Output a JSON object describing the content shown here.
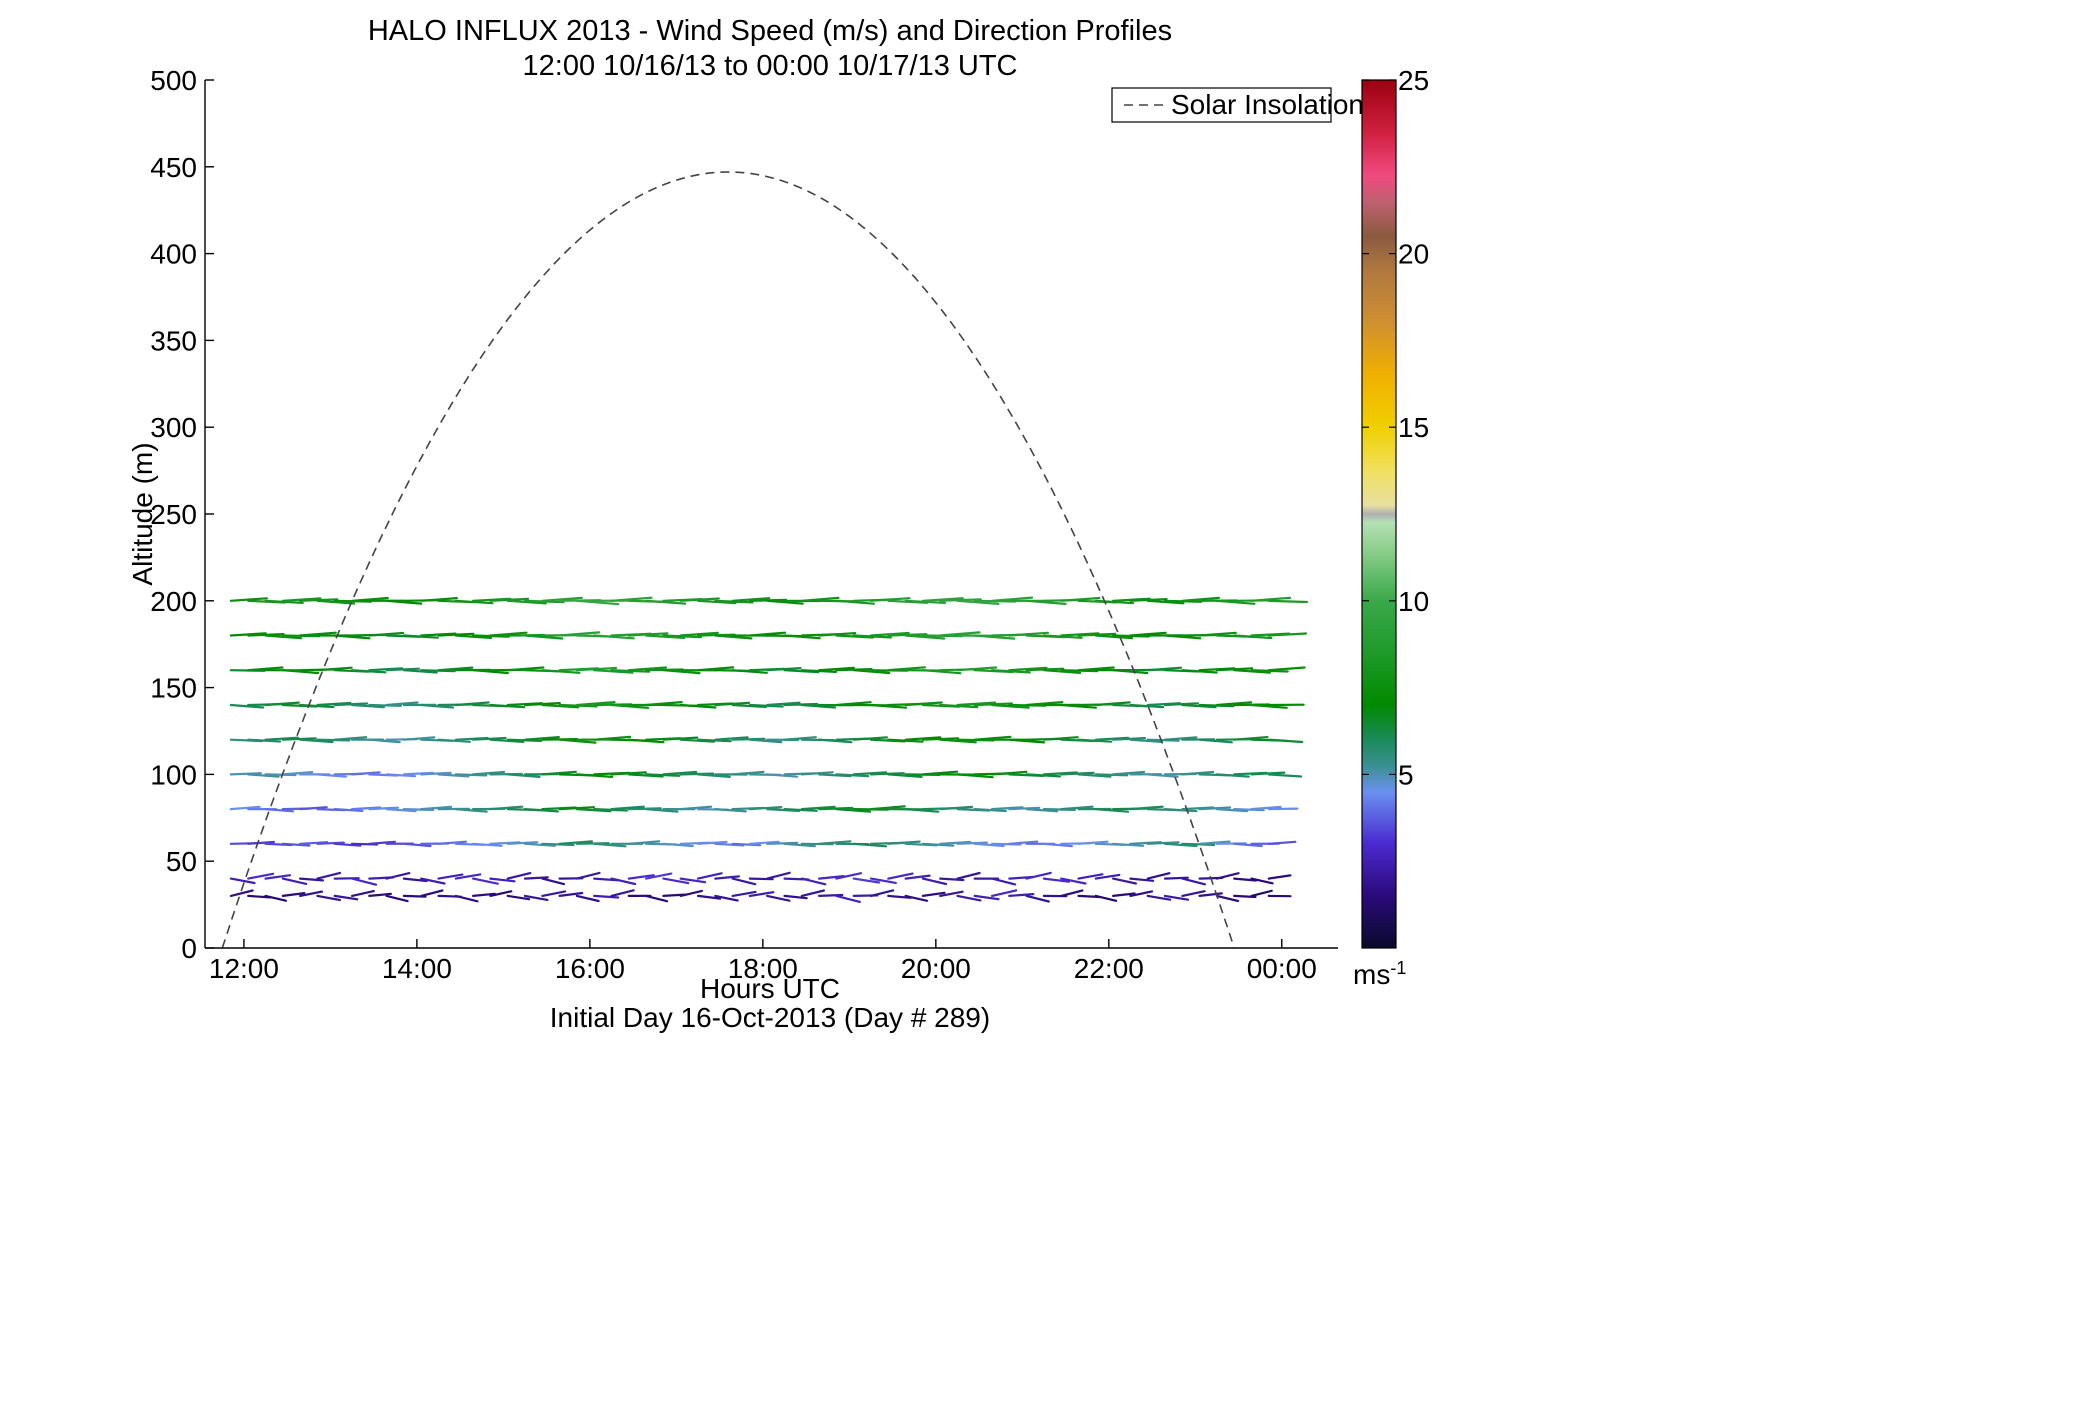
{
  "chart_data": {
    "type": "quiver",
    "title": "HALO INFLUX 2013 - Wind Speed (m/s) and Direction Profiles",
    "subtitle": "12:00 10/16/13 to 00:00 10/17/13  UTC",
    "xlabel": "Hours UTC",
    "xlabel_sub": "Initial Day 16-Oct-2013 (Day # 289)",
    "ylabel": "Altitude (m)",
    "xlim": [
      11.55,
      24.65
    ],
    "ylim": [
      0,
      500
    ],
    "x_ticks": [
      {
        "value": 12,
        "label": "12:00"
      },
      {
        "value": 14,
        "label": "14:00"
      },
      {
        "value": 16,
        "label": "16:00"
      },
      {
        "value": 18,
        "label": "18:00"
      },
      {
        "value": 20,
        "label": "20:00"
      },
      {
        "value": 22,
        "label": "22:00"
      },
      {
        "value": 24,
        "label": "00:00"
      }
    ],
    "y_ticks": [
      0,
      50,
      100,
      150,
      200,
      250,
      300,
      350,
      400,
      450,
      500
    ],
    "grid": false,
    "legend": {
      "position": "top-right",
      "entries": [
        "Solar Insolation"
      ]
    },
    "colorbar": {
      "min": 0,
      "max": 25,
      "ticks": [
        5,
        10,
        15,
        20,
        25
      ],
      "unit": "ms",
      "unit_exponent": "-1"
    },
    "solar_insolation": {
      "style": "dashed",
      "color": "#444444",
      "start_hour": 11.75,
      "end_hour": 23.45,
      "peak_hour": 17.6,
      "peak_altitude": 447
    },
    "wind_vectors_by_altitude": [
      {
        "altitude": 30,
        "speed": [
          1.8,
          1.5,
          1.2,
          1.5,
          1.8,
          2.0,
          2.0,
          1.8,
          1.5,
          1.5,
          1.5,
          1.6,
          1.8,
          1.8,
          1.6,
          1.4,
          1.5,
          2.0,
          2.2,
          2.0,
          1.8,
          2.5,
          2.0,
          1.5,
          1.5,
          1.4,
          1.6,
          1.8,
          2.0,
          2.2,
          2.4,
          2.0,
          1.8,
          2.0,
          2.2,
          2.6,
          2.4,
          2.0,
          1.8,
          1.7,
          1.6,
          2.0,
          2.3,
          2.5,
          2.8,
          2.5,
          2.0,
          1.8,
          1.6,
          1.4,
          1.2,
          1.5,
          1.7,
          2.0,
          2.2,
          2.0,
          1.8,
          1.6,
          1.4,
          1.2,
          1.5,
          1.4,
          1.6
        ]
      },
      {
        "altitude": 40,
        "speed": [
          2.5,
          3.0,
          2.8,
          2.5,
          2.0,
          2.2,
          2.5,
          2.8,
          2.5,
          2.2,
          2.0,
          2.4,
          2.6,
          2.8,
          3.0,
          2.6,
          2.2,
          2.0,
          1.8,
          2.0,
          2.2,
          2.4,
          2.6,
          3.0,
          3.2,
          3.0,
          2.8,
          2.6,
          2.4,
          2.2,
          2.0,
          2.2,
          2.4,
          2.6,
          2.8,
          3.0,
          3.2,
          3.0,
          2.8,
          2.6,
          2.4,
          2.2,
          2.0,
          2.2,
          2.4,
          2.6,
          2.8,
          3.0,
          2.8,
          2.6,
          2.4,
          2.2,
          2.0,
          1.8,
          2.0,
          2.2,
          2.0,
          1.8,
          1.6,
          1.5,
          1.6,
          1.8,
          1.5
        ]
      },
      {
        "altitude": 60,
        "speed": [
          3.5,
          3.2,
          3.4,
          3.6,
          3.8,
          3.5,
          3.2,
          3.0,
          3.2,
          3.4,
          3.6,
          3.8,
          4.0,
          4.2,
          4.4,
          4.6,
          4.8,
          5.0,
          5.5,
          6.0,
          5.8,
          5.6,
          5.4,
          5.2,
          5.0,
          4.8,
          4.6,
          4.4,
          4.2,
          4.0,
          4.5,
          5.0,
          5.2,
          5.4,
          5.6,
          5.8,
          6.0,
          5.8,
          5.6,
          5.4,
          5.2,
          5.0,
          4.8,
          4.6,
          4.4,
          4.2,
          4.0,
          4.2,
          4.4,
          4.6,
          4.8,
          5.0,
          5.2,
          5.4,
          5.6,
          5.8,
          5.0,
          4.5,
          4.0,
          3.8,
          3.6,
          3.4,
          3.2
        ]
      },
      {
        "altitude": 80,
        "speed": [
          4.5,
          4.2,
          4.0,
          3.8,
          3.6,
          3.8,
          4.0,
          4.2,
          4.4,
          4.6,
          4.8,
          5.0,
          5.2,
          5.4,
          5.6,
          5.8,
          6.0,
          6.2,
          6.5,
          6.8,
          6.5,
          6.2,
          6.0,
          5.8,
          5.6,
          5.4,
          5.2,
          5.0,
          5.2,
          5.4,
          5.6,
          5.8,
          6.0,
          6.2,
          6.4,
          6.6,
          6.8,
          6.6,
          6.4,
          6.2,
          6.0,
          5.8,
          5.6,
          5.4,
          5.2,
          5.0,
          5.2,
          5.4,
          5.6,
          5.8,
          6.0,
          6.2,
          6.0,
          5.8,
          5.6,
          5.4,
          5.2,
          5.0,
          4.8,
          4.6,
          4.4,
          4.2,
          4.0
        ]
      },
      {
        "altitude": 100,
        "speed": [
          5.0,
          5.2,
          5.0,
          4.8,
          4.6,
          4.4,
          4.2,
          4.0,
          4.2,
          4.4,
          4.6,
          4.8,
          5.0,
          5.2,
          5.4,
          5.6,
          5.8,
          6.0,
          6.5,
          7.0,
          7.2,
          7.0,
          6.8,
          6.6,
          6.4,
          6.2,
          6.0,
          5.8,
          5.6,
          5.4,
          5.2,
          5.0,
          5.2,
          5.4,
          5.6,
          5.8,
          6.0,
          6.2,
          6.4,
          6.6,
          6.8,
          7.0,
          7.2,
          7.0,
          6.8,
          6.6,
          6.4,
          6.2,
          6.0,
          5.8,
          5.6,
          5.4,
          5.2,
          5.0,
          5.2,
          5.4,
          5.6,
          5.8,
          6.0,
          6.2,
          6.0,
          5.8,
          5.5
        ]
      },
      {
        "altitude": 120,
        "speed": [
          5.5,
          5.8,
          6.0,
          6.2,
          6.0,
          5.8,
          5.6,
          5.4,
          5.2,
          5.0,
          5.2,
          5.4,
          5.6,
          5.8,
          6.0,
          6.2,
          6.4,
          6.6,
          7.0,
          7.5,
          7.8,
          7.5,
          7.2,
          7.0,
          6.8,
          6.6,
          6.4,
          6.2,
          6.0,
          5.8,
          5.6,
          5.4,
          5.6,
          5.8,
          6.0,
          6.2,
          6.4,
          6.6,
          6.8,
          7.0,
          7.2,
          7.4,
          7.6,
          7.4,
          7.2,
          7.0,
          6.8,
          6.6,
          6.4,
          6.2,
          6.0,
          5.8,
          5.6,
          5.4,
          5.6,
          5.8,
          6.0,
          6.2,
          6.4,
          6.6,
          6.4,
          6.2,
          6.0
        ]
      },
      {
        "altitude": 140,
        "speed": [
          6.0,
          6.2,
          6.4,
          6.6,
          6.4,
          6.2,
          6.0,
          5.8,
          5.6,
          5.4,
          5.6,
          5.8,
          6.0,
          6.2,
          6.4,
          6.6,
          6.8,
          7.0,
          7.5,
          8.0,
          8.2,
          8.0,
          7.8,
          7.6,
          7.4,
          7.2,
          7.0,
          6.8,
          6.6,
          6.4,
          6.2,
          6.0,
          6.2,
          6.4,
          6.6,
          6.8,
          7.0,
          7.2,
          7.4,
          7.6,
          7.8,
          8.0,
          8.2,
          8.0,
          7.8,
          7.6,
          7.4,
          7.2,
          7.0,
          6.8,
          6.6,
          6.4,
          6.2,
          6.0,
          6.2,
          6.4,
          6.6,
          6.8,
          7.0,
          7.2,
          7.0,
          6.8,
          6.5
        ]
      },
      {
        "altitude": 160,
        "speed": [
          6.5,
          6.8,
          7.0,
          7.2,
          7.0,
          6.8,
          6.6,
          6.4,
          6.2,
          6.0,
          6.2,
          6.4,
          6.6,
          6.8,
          7.0,
          7.2,
          7.4,
          7.6,
          8.0,
          8.5,
          8.8,
          8.5,
          8.2,
          8.0,
          7.8,
          7.6,
          7.4,
          7.2,
          7.0,
          6.8,
          6.6,
          6.4,
          6.6,
          6.8,
          7.0,
          7.2,
          7.4,
          7.6,
          7.8,
          8.0,
          8.2,
          8.4,
          8.6,
          8.4,
          8.2,
          8.0,
          7.8,
          7.6,
          7.4,
          7.2,
          7.0,
          6.8,
          6.6,
          6.4,
          6.6,
          6.8,
          7.0,
          7.2,
          7.4,
          7.6,
          7.4,
          7.2,
          7.0
        ]
      },
      {
        "altitude": 180,
        "speed": [
          7.0,
          7.2,
          7.4,
          7.6,
          7.4,
          7.2,
          7.0,
          6.8,
          6.6,
          6.4,
          6.6,
          6.8,
          7.0,
          7.2,
          7.4,
          7.6,
          7.8,
          8.0,
          8.5,
          9.0,
          9.2,
          9.0,
          8.8,
          8.6,
          8.4,
          8.2,
          8.0,
          7.8,
          7.6,
          7.4,
          7.2,
          7.0,
          7.2,
          7.4,
          7.6,
          7.8,
          8.0,
          8.2,
          8.4,
          8.6,
          8.8,
          9.0,
          9.2,
          9.0,
          8.8,
          8.6,
          8.4,
          8.2,
          8.0,
          7.8,
          7.6,
          7.4,
          7.2,
          7.0,
          7.2,
          7.4,
          7.6,
          7.8,
          8.0,
          8.2,
          8.0,
          7.8,
          7.5
        ]
      },
      {
        "altitude": 200,
        "speed": [
          7.5,
          7.8,
          8.0,
          8.2,
          8.0,
          7.8,
          7.6,
          7.4,
          7.2,
          7.0,
          7.2,
          7.4,
          7.6,
          7.8,
          8.0,
          8.2,
          8.4,
          8.6,
          9.0,
          9.5,
          9.8,
          9.5,
          9.2,
          9.0,
          8.8,
          8.6,
          8.4,
          8.2,
          8.0,
          7.8,
          7.6,
          7.4,
          7.6,
          7.8,
          8.0,
          8.2,
          8.4,
          8.6,
          8.8,
          9.0,
          9.2,
          9.4,
          9.6,
          9.4,
          9.2,
          9.0,
          8.8,
          8.6,
          8.4,
          8.2,
          8.0,
          7.8,
          7.6,
          7.4,
          7.6,
          7.8,
          8.0,
          8.2,
          8.4,
          8.6,
          8.4,
          8.2,
          8.0
        ]
      }
    ]
  }
}
